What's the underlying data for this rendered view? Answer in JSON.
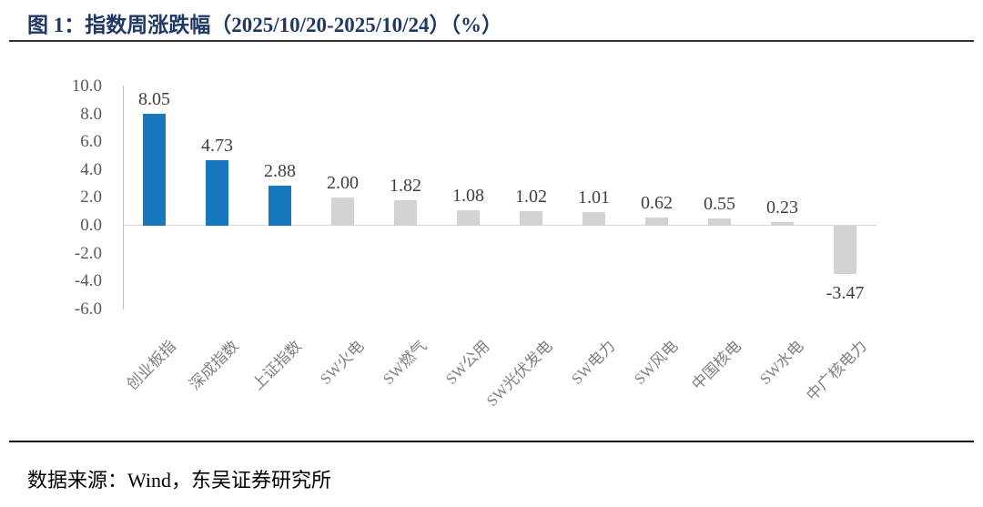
{
  "header": {
    "title": "图 1：指数周涨跌幅（2025/10/20-2025/10/24）（%）",
    "title_color": "#1f3864"
  },
  "footer": {
    "source": "数据来源：Wind，东吴证券研究所"
  },
  "chart_data": {
    "type": "bar",
    "title": "指数周涨跌幅（2025/10/20-2025/10/24）（%）",
    "categories": [
      "创业板指",
      "深成指数",
      "上证指数",
      "SW火电",
      "SW燃气",
      "SW公用",
      "SW光伏发电",
      "SW电力",
      "SW风电",
      "中国核电",
      "SW水电",
      "中广核电力"
    ],
    "values": [
      8.05,
      4.73,
      2.88,
      2.0,
      1.82,
      1.08,
      1.02,
      1.01,
      0.62,
      0.55,
      0.23,
      -3.47
    ],
    "value_labels": [
      "8.05",
      "4.73",
      "2.88",
      "2.00",
      "1.82",
      "1.08",
      "1.02",
      "1.01",
      "0.62",
      "0.55",
      "0.23",
      "-3.47"
    ],
    "ytick_labels": [
      "10.0",
      "8.0",
      "6.0",
      "4.0",
      "2.0",
      "0.0",
      "-2.0",
      "-4.0",
      "-6.0"
    ],
    "yticks": [
      10.0,
      8.0,
      6.0,
      4.0,
      2.0,
      0.0,
      -2.0,
      -4.0,
      -6.0
    ],
    "ylim": [
      -6.0,
      10.0
    ],
    "xlabel": "",
    "ylabel": "",
    "grid": false,
    "legend": null,
    "colors": {
      "highlight_bar": "#1778be",
      "default_bar": "#d3d3d3",
      "axis_line": "#bfbfbf",
      "zero_line": "#d9d9d9",
      "tick_text": "#595959",
      "value_text": "#3f3f3f",
      "category_text": "#808080"
    },
    "highlight_count": 3
  }
}
